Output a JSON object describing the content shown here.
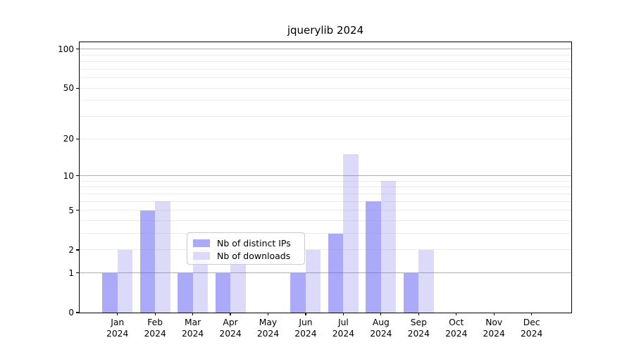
{
  "chart_data": {
    "type": "bar",
    "title": "jquerylib 2024",
    "x_tick_months": [
      "Jan",
      "Feb",
      "Mar",
      "Apr",
      "May",
      "Jun",
      "Jul",
      "Aug",
      "Sep",
      "Oct",
      "Nov",
      "Dec"
    ],
    "x_tick_year": "2024",
    "series": [
      {
        "name": "Nb of distinct IPs",
        "color": "#aaaaf9",
        "values": [
          1,
          5,
          1,
          1,
          0,
          1,
          3,
          6,
          1,
          0,
          0,
          0
        ]
      },
      {
        "name": "Nb of downloads",
        "color": "#dbdbf9",
        "values": [
          2,
          6,
          2,
          2,
          0,
          2,
          15,
          9,
          2,
          0,
          0,
          0
        ]
      }
    ],
    "y_scale": "log1p",
    "ylim": [
      0,
      113
    ],
    "y_ticks": [
      0,
      1,
      2,
      5,
      10,
      20,
      50,
      100
    ],
    "grid_major": [
      1,
      10,
      100
    ],
    "grid_minor": [
      2,
      3,
      4,
      5,
      6,
      7,
      8,
      9,
      20,
      30,
      40,
      50,
      60,
      70,
      80,
      90
    ],
    "legend_position": "inside bottom-center",
    "grid": "on"
  },
  "colors": {
    "distinct_ips": "#aaaaf9",
    "downloads": "#dbdbf9",
    "grid_major": "rgba(110,110,110,0.55)",
    "grid_minor": "rgba(150,150,150,0.2)",
    "axis": "#000000",
    "background": "#ffffff"
  }
}
